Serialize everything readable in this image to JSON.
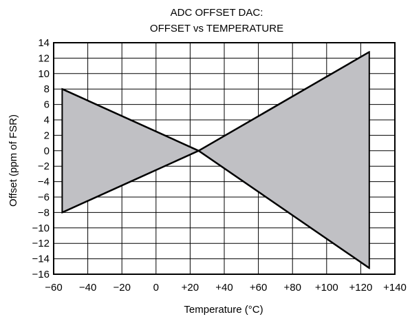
{
  "chart_data": {
    "type": "area",
    "title_lines": [
      "ADC OFFSET DAC:",
      "OFFSET vs TEMPERATURE"
    ],
    "xlabel": "Temperature (°C)",
    "ylabel": "Offset (ppm of FSR)",
    "xlim": [
      -60,
      140
    ],
    "ylim": [
      -16,
      14
    ],
    "x_ticks": [
      -60,
      -40,
      -20,
      0,
      20,
      40,
      60,
      80,
      100,
      120,
      140
    ],
    "x_tick_labels": [
      "−60",
      "−40",
      "−20",
      "0",
      "+20",
      "+40",
      "+60",
      "+80",
      "+100",
      "+120",
      "+140"
    ],
    "y_ticks": [
      14,
      12,
      10,
      8,
      6,
      4,
      2,
      0,
      -2,
      -4,
      -6,
      -8,
      -10,
      -12,
      -14,
      -16
    ],
    "y_tick_labels": [
      "14",
      "12",
      "10",
      "8",
      "6",
      "4",
      "2",
      "0",
      "−2",
      "−4",
      "−6",
      "−8",
      "−10",
      "−12",
      "−14",
      "−16"
    ],
    "grid": true,
    "fill_color": "#c0c0c4",
    "series": [
      {
        "x": [
          -55,
          25,
          125
        ],
        "y": [
          8,
          0,
          -15.2
        ]
      },
      {
        "x": [
          -55,
          25,
          125
        ],
        "y": [
          -8,
          0,
          12.8
        ]
      }
    ]
  }
}
